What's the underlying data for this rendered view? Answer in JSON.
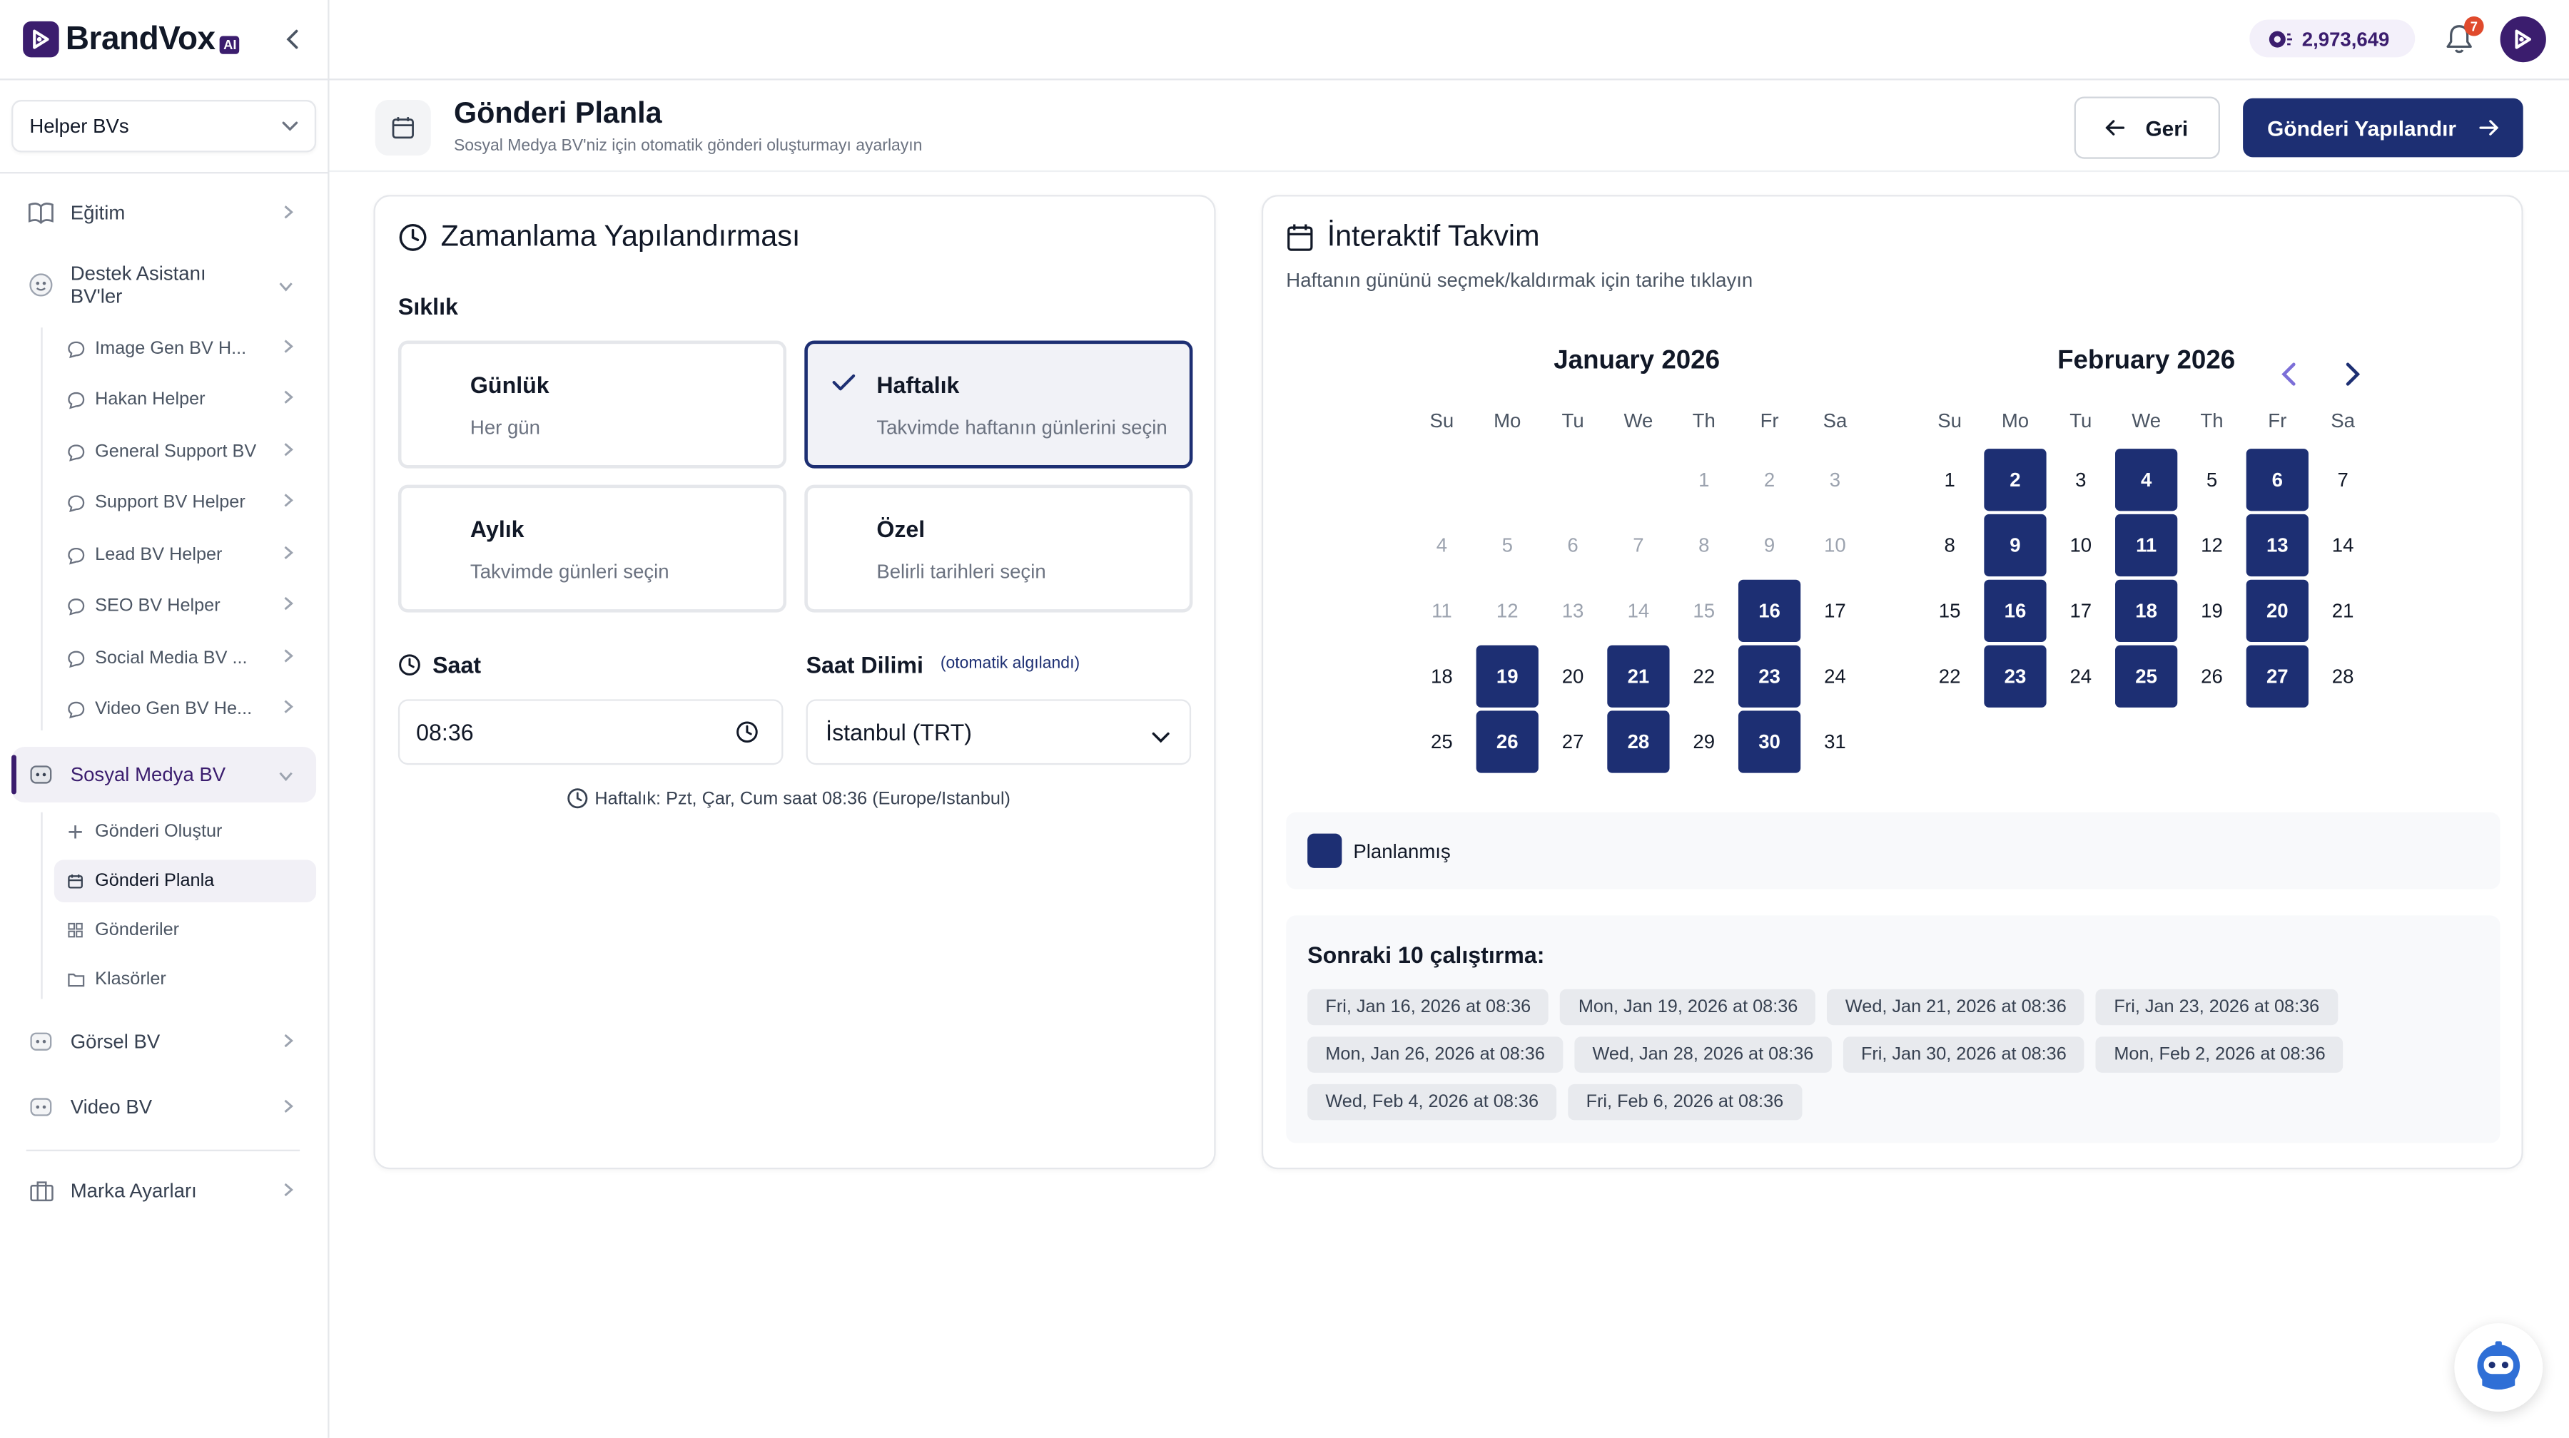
{
  "app": {
    "brand": "BrandVox",
    "brand_badge": "AI",
    "credits": "2,973,649",
    "notifications": "7"
  },
  "sidebar": {
    "bv_select": "Helper BVs",
    "items": [
      {
        "label": "Eğitim",
        "icon": "book-icon"
      },
      {
        "label": "Destek Asistanı BV'ler",
        "icon": "support-bot-icon"
      },
      {
        "label": "Sosyal Medya BV",
        "icon": "social-bot-icon"
      },
      {
        "label": "Görsel BV",
        "icon": "image-bot-icon"
      },
      {
        "label": "Video BV",
        "icon": "video-bot-icon"
      },
      {
        "label": "Marka Ayarları",
        "icon": "brand-icon"
      }
    ],
    "support_children": [
      "Image Gen BV H...",
      "Hakan Helper",
      "General Support BV",
      "Support BV Helper",
      "Lead BV Helper",
      "SEO BV Helper",
      "Social Media BV ...",
      "Video Gen BV He..."
    ],
    "social_children": [
      {
        "label": "Gönderi Oluştur",
        "icon": "plus-icon"
      },
      {
        "label": "Gönderi Planla",
        "icon": "calendar-icon"
      },
      {
        "label": "Gönderiler",
        "icon": "grid-icon"
      },
      {
        "label": "Klasörler",
        "icon": "folder-icon"
      }
    ]
  },
  "header": {
    "title": "Gönderi Planla",
    "subtitle": "Sosyal Medya BV'niz için otomatik gönderi oluşturmayı ayarlayın",
    "back_label": "Geri",
    "configure_label": "Gönderi Yapılandır"
  },
  "scheduling": {
    "title": "Zamanlama Yapılandırması",
    "frequency_label": "Sıklık",
    "options": [
      {
        "title": "Günlük",
        "desc": "Her gün",
        "selected": false
      },
      {
        "title": "Haftalık",
        "desc": "Takvimde haftanın günlerini seçin",
        "selected": true
      },
      {
        "title": "Aylık",
        "desc": "Takvimde günleri seçin",
        "selected": false
      },
      {
        "title": "Özel",
        "desc": "Belirli tarihleri seçin",
        "selected": false
      }
    ],
    "time_label": "Saat",
    "time_value": "08:36",
    "timezone_label": "Saat Dilimi",
    "timezone_hint": "(otomatik algılandı)",
    "timezone_value": "İstanbul (TRT)",
    "summary": "Haftalık: Pzt, Çar, Cum saat 08:36 (Europe/Istanbul)"
  },
  "calendar": {
    "title": "İnteraktif Takvim",
    "subtitle": "Haftanın gününü seçmek/kaldırmak için tarihe tıklayın",
    "weekdays": [
      "Su",
      "Mo",
      "Tu",
      "We",
      "Th",
      "Fr",
      "Sa"
    ],
    "months": [
      {
        "title": "January 2026",
        "first_weekday": 4,
        "days": 31,
        "past_through": 15,
        "selected": [
          16,
          19,
          21,
          23,
          26,
          28,
          30
        ]
      },
      {
        "title": "February 2026",
        "first_weekday": 0,
        "days": 28,
        "past_through": 0,
        "selected": [
          2,
          4,
          6,
          9,
          11,
          13,
          16,
          18,
          20,
          23,
          25,
          27
        ]
      }
    ],
    "legend_label": "Planlanmış",
    "next_runs_title": "Sonraki 10 çalıştırma:",
    "next_runs": [
      "Fri, Jan 16, 2026 at 08:36",
      "Mon, Jan 19, 2026 at 08:36",
      "Wed, Jan 21, 2026 at 08:36",
      "Fri, Jan 23, 2026 at 08:36",
      "Mon, Jan 26, 2026 at 08:36",
      "Wed, Jan 28, 2026 at 08:36",
      "Fri, Jan 30, 2026 at 08:36",
      "Mon, Feb 2, 2026 at 08:36",
      "Wed, Feb 4, 2026 at 08:36",
      "Fri, Feb 6, 2026 at 08:36"
    ]
  },
  "colors": {
    "primary": "#1d2f73",
    "brand": "#3b1d6e",
    "badge": "#e04a2c"
  }
}
